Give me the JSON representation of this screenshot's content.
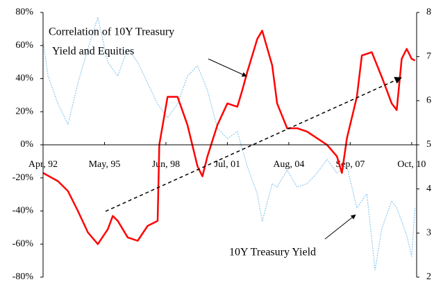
{
  "chart_data": {
    "type": "line",
    "annotations": [
      {
        "lines": [
          "Correlation of 10Y Treasury",
          "Yield and Equities"
        ]
      },
      {
        "lines": [
          "10Y Treasury Yield"
        ]
      }
    ],
    "xlim": [
      "1992-04",
      "2011-01"
    ],
    "xticks": [
      {
        "value": "1992-04",
        "label": "Apr, 92"
      },
      {
        "value": "1995-05",
        "label": "May, 95"
      },
      {
        "value": "1998-06",
        "label": "Jun, 98"
      },
      {
        "value": "2001-07",
        "label": "Jul, 01"
      },
      {
        "value": "2004-08",
        "label": "Aug, 04"
      },
      {
        "value": "2007-09",
        "label": "Sep, 07"
      },
      {
        "value": "2010-10",
        "label": "Oct, 10"
      }
    ],
    "ylim": [
      -80,
      80
    ],
    "yticks": [
      {
        "value": -80,
        "label": "-80%"
      },
      {
        "value": -60,
        "label": "-60%"
      },
      {
        "value": -40,
        "label": "-40%"
      },
      {
        "value": -20,
        "label": "-20%"
      },
      {
        "value": 0,
        "label": "0%"
      },
      {
        "value": 20,
        "label": "20%"
      },
      {
        "value": 40,
        "label": "40%"
      },
      {
        "value": 60,
        "label": "60%"
      },
      {
        "value": 80,
        "label": "80%"
      }
    ],
    "y2lim": [
      2,
      8
    ],
    "y2ticks": [
      2,
      3,
      4,
      5,
      6,
      7,
      8
    ],
    "series": [
      {
        "name": "Correlation of 10Y Treasury Yield and Equities",
        "color": "#ff0000",
        "style": "solid",
        "x": [
          "1992-04",
          "1993-01",
          "1993-07",
          "1994-01",
          "1994-07",
          "1995-01",
          "1995-07",
          "1995-10",
          "1996-01",
          "1996-07",
          "1997-01",
          "1997-07",
          "1998-01",
          "1998-02",
          "1998-07",
          "1999-01",
          "1999-07",
          "2000-01",
          "2000-04",
          "2000-07",
          "2001-01",
          "2001-07",
          "2002-01",
          "2002-04",
          "2002-07",
          "2003-01",
          "2003-04",
          "2003-10",
          "2004-01",
          "2004-07",
          "2005-01",
          "2005-07",
          "2006-01",
          "2006-07",
          "2007-01",
          "2007-04",
          "2007-07",
          "2008-01",
          "2008-04",
          "2008-10",
          "2009-04",
          "2009-07",
          "2009-10",
          "2010-01",
          "2010-04",
          "2010-07",
          "2010-10",
          "2010-12"
        ],
        "values": [
          -17,
          -22,
          -28,
          -40,
          -53,
          -60,
          -51,
          -43,
          -46,
          -56,
          -58,
          -49,
          -46,
          0,
          29,
          29,
          12,
          -13,
          -19,
          -7,
          12,
          25,
          23,
          33,
          44,
          64,
          69,
          48,
          25,
          10,
          10,
          8,
          4,
          0,
          -7,
          -17,
          4,
          29,
          54,
          56,
          41,
          33,
          25,
          21,
          52,
          58,
          52,
          51
        ]
      },
      {
        "name": "10Y Treasury Yield",
        "color": "#8ec8f0",
        "style": "dotted",
        "axis": "y2",
        "x": [
          "1992-04",
          "1992-07",
          "1993-01",
          "1993-07",
          "1994-01",
          "1994-07",
          "1995-01",
          "1995-07",
          "1996-01",
          "1996-07",
          "1997-01",
          "1997-07",
          "1998-01",
          "1998-07",
          "1999-01",
          "1999-07",
          "2000-01",
          "2000-07",
          "2001-01",
          "2001-07",
          "2002-01",
          "2002-07",
          "2003-01",
          "2003-04",
          "2003-10",
          "2004-01",
          "2004-07",
          "2005-01",
          "2005-07",
          "2006-01",
          "2006-07",
          "2007-01",
          "2007-07",
          "2008-01",
          "2008-07",
          "2008-12",
          "2009-04",
          "2009-10",
          "2010-01",
          "2010-07",
          "2010-10",
          "2010-12"
        ],
        "values": [
          7.34,
          6.56,
          5.93,
          5.46,
          6.4,
          7.18,
          7.89,
          6.87,
          6.56,
          7.18,
          6.87,
          6.4,
          5.93,
          5.61,
          5.93,
          6.56,
          6.79,
          6.24,
          5.38,
          5.14,
          5.3,
          4.51,
          3.89,
          3.26,
          4.12,
          4.04,
          4.43,
          4.04,
          4.12,
          4.36,
          4.67,
          4.36,
          4.51,
          3.57,
          3.89,
          2.16,
          3.1,
          3.73,
          3.57,
          2.95,
          2.47,
          3.57
        ]
      }
    ]
  }
}
